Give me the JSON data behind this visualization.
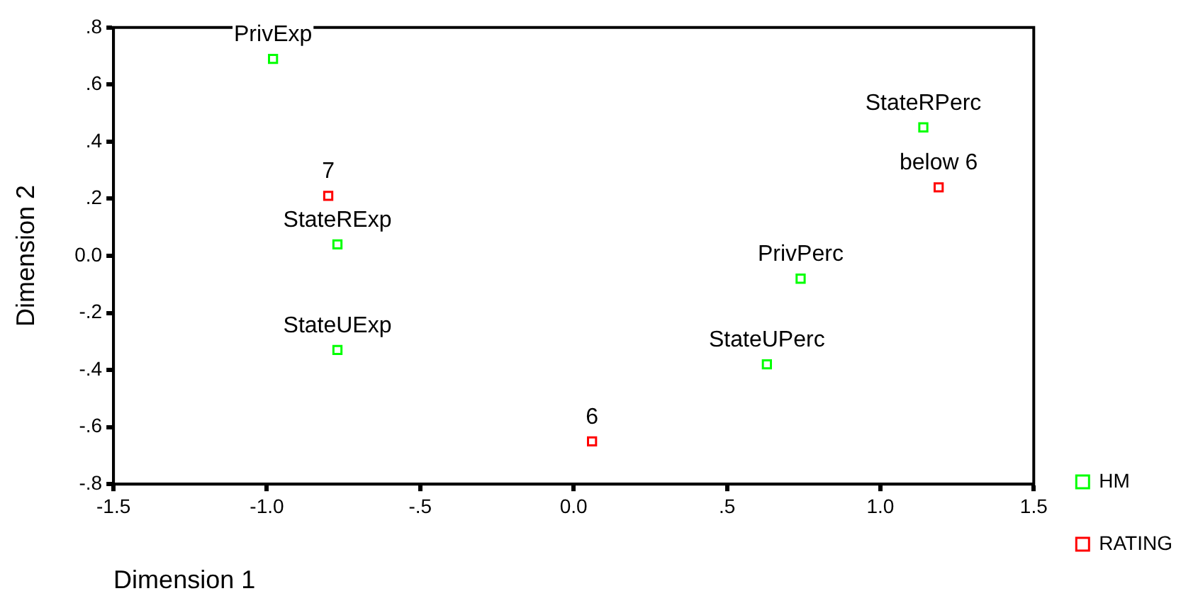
{
  "chart_data": {
    "type": "scatter",
    "xlabel": "Dimension 1",
    "ylabel": "Dimension 2",
    "xlim": [
      -1.5,
      1.5
    ],
    "ylim": [
      -0.8,
      0.8
    ],
    "xticks": [
      {
        "value": -1.5,
        "label": "-1.5"
      },
      {
        "value": -1.0,
        "label": "-1.0"
      },
      {
        "value": -0.5,
        "label": "-.5"
      },
      {
        "value": 0,
        "label": "0.0"
      },
      {
        "value": 0.5,
        "label": ".5"
      },
      {
        "value": 1.0,
        "label": "1.0"
      },
      {
        "value": 1.5,
        "label": "1.5"
      }
    ],
    "yticks": [
      {
        "value": -0.8,
        "label": "-.8"
      },
      {
        "value": -0.6,
        "label": "-.6"
      },
      {
        "value": -0.4,
        "label": "-.4"
      },
      {
        "value": -0.2,
        "label": "-.2"
      },
      {
        "value": 0,
        "label": "0.0"
      },
      {
        "value": 0.2,
        "label": ".2"
      },
      {
        "value": 0.4,
        "label": ".4"
      },
      {
        "value": 0.6,
        "label": ".6"
      },
      {
        "value": 0.8,
        "label": ".8"
      }
    ],
    "series": [
      {
        "name": "HM",
        "color": "#00ff00",
        "x": [
          -0.98,
          -0.77,
          -0.77,
          1.14,
          0.74,
          0.63
        ],
        "values": [
          0.69,
          0.04,
          -0.33,
          0.45,
          -0.08,
          -0.38
        ]
      },
      {
        "name": "RATING",
        "color": "#ff0000",
        "x": [
          -0.8,
          0.06,
          1.19
        ],
        "values": [
          0.21,
          -0.65,
          0.24
        ]
      }
    ],
    "annotations": [
      {
        "text": "PrivExp",
        "x": -0.98,
        "y": 0.69
      },
      {
        "text": "StateRExp",
        "x": -0.77,
        "y": 0.04
      },
      {
        "text": "StateUExp",
        "x": -0.77,
        "y": -0.33
      },
      {
        "text": "StateRPerc",
        "x": 1.14,
        "y": 0.45
      },
      {
        "text": "PrivPerc",
        "x": 0.74,
        "y": -0.08
      },
      {
        "text": "StateUPerc",
        "x": 0.63,
        "y": -0.38
      },
      {
        "text": "7",
        "x": -0.8,
        "y": 0.21
      },
      {
        "text": "6",
        "x": 0.06,
        "y": -0.65
      },
      {
        "text": "below 6",
        "x": 1.19,
        "y": 0.24
      }
    ],
    "marker": "square",
    "grid": false,
    "legend": "right"
  }
}
